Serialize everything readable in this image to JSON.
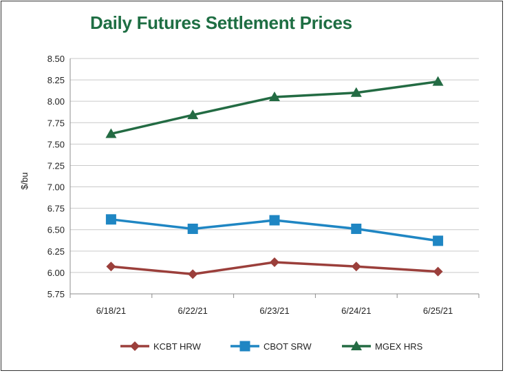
{
  "chart_data": {
    "type": "line",
    "title": "Daily Futures Settlement Prices",
    "xlabel": "",
    "ylabel": "$/bu",
    "categories": [
      "6/18/21",
      "6/22/21",
      "6/23/21",
      "6/24/21",
      "6/25/21"
    ],
    "ylim": [
      5.75,
      8.5
    ],
    "yticks": [
      "8.50",
      "8.25",
      "8.00",
      "7.75",
      "7.50",
      "7.25",
      "7.00",
      "6.75",
      "6.50",
      "6.25",
      "6.00",
      "5.75"
    ],
    "grid": "horizontal",
    "legend_position": "bottom",
    "series": [
      {
        "name": "KCBT HRW",
        "color": "#9b3f3b",
        "marker": "diamond",
        "values": [
          6.07,
          5.98,
          6.12,
          6.07,
          6.01
        ]
      },
      {
        "name": "CBOT SRW",
        "color": "#1f86c3",
        "marker": "square",
        "values": [
          6.62,
          6.51,
          6.61,
          6.51,
          6.37
        ]
      },
      {
        "name": "MGEX HRS",
        "color": "#236b43",
        "marker": "triangle",
        "values": [
          7.62,
          7.84,
          8.05,
          8.1,
          8.23
        ]
      }
    ]
  }
}
